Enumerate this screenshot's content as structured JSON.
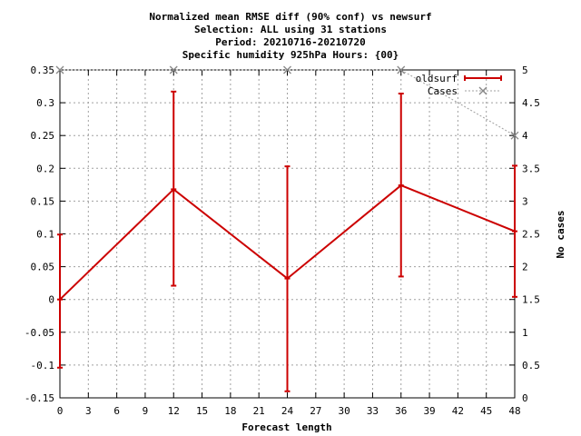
{
  "chart_data": {
    "type": "line",
    "title_lines": [
      "Normalized mean RMSE diff (90% conf) vs newsurf",
      "Selection: ALL using    31 stations",
      "Period: 20210716-20210720",
      "Specific humidity 925hPa   Hours: {00}"
    ],
    "xlabel": "Forecast length",
    "ylabel": "",
    "y2label": "No cases",
    "xlim": [
      0,
      48
    ],
    "ylim": [
      -0.15,
      0.35
    ],
    "y2lim": [
      0,
      5
    ],
    "xticks": [
      0,
      3,
      6,
      9,
      12,
      15,
      18,
      21,
      24,
      27,
      30,
      33,
      36,
      39,
      42,
      45,
      48
    ],
    "yticks": [
      -0.15,
      -0.1,
      -0.05,
      0,
      0.05,
      0.1,
      0.15,
      0.2,
      0.25,
      0.3,
      0.35
    ],
    "yticklabels": [
      "-0.15",
      "-0.1",
      "-0.05",
      "0",
      "0.05",
      "0.1",
      "0.15",
      "0.2",
      "0.25",
      "0.3",
      "0.35"
    ],
    "y2ticks": [
      0,
      0.5,
      1,
      1.5,
      2,
      2.5,
      3,
      3.5,
      4,
      4.5,
      5
    ],
    "y2ticklabels": [
      "0",
      "0.5",
      "1",
      "1.5",
      "2",
      "2.5",
      "3",
      "3.5",
      "4",
      "4.5",
      "5"
    ],
    "grid": true,
    "legend_position": "top-right",
    "series": [
      {
        "name": "oldsurf",
        "color": "#cc0000",
        "x": [
          0,
          12,
          24,
          36,
          48
        ],
        "y": [
          0.0,
          0.168,
          0.032,
          0.174,
          0.104
        ],
        "err_low": [
          -0.104,
          0.021,
          -0.14,
          0.035,
          0.004
        ],
        "err_high": [
          0.099,
          0.317,
          0.203,
          0.314,
          0.204
        ]
      },
      {
        "name": "Cases",
        "color": "#a0a0a0",
        "axis": "y2",
        "x": [
          0,
          12,
          24,
          36,
          48
        ],
        "y": [
          5,
          5,
          5,
          5,
          4
        ]
      }
    ]
  }
}
